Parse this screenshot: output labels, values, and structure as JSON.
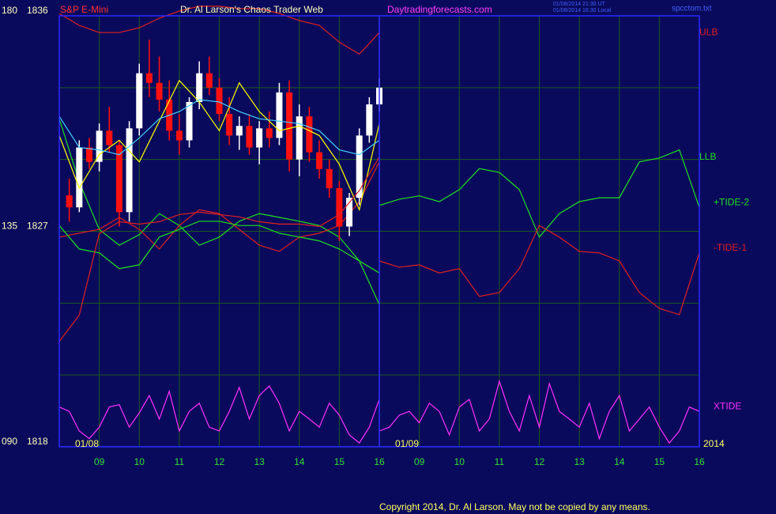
{
  "chart_data": {
    "type": "candlestick",
    "instrument": "S&P E-Mini",
    "title": "Dr. Al Larson's Chaos Trader Web",
    "website": "Daytradingforecasts.com",
    "timestamps": [
      "01/08/2014 21:30 UT",
      "01/08/2014 16:30 Local"
    ],
    "file": "spcctom.txt",
    "year": "2014",
    "copyright": "Copyright 2014, Dr. Al Larson. May not be copied by any means.",
    "ylim": [
      90,
      180
    ],
    "yticks": [
      {
        "value": 90,
        "label": "090"
      },
      135,
      180
    ],
    "y2lim": [
      1818,
      1836
    ],
    "y2ticks": [
      1818,
      1827,
      1836
    ],
    "grid_yticks": [
      90,
      105,
      120,
      135,
      150,
      165,
      180
    ],
    "grid": true,
    "sessions": [
      {
        "date": "01/08",
        "xlim": [
          8,
          16
        ],
        "xticks": [
          {
            "value": 9,
            "label": "09"
          },
          10,
          11,
          12,
          13,
          14,
          15,
          16
        ]
      },
      {
        "date": "01/09",
        "xlim": [
          8,
          16
        ],
        "xticks": [
          {
            "value": 9,
            "label": "09"
          },
          10,
          11,
          12,
          13,
          14,
          15,
          16
        ]
      }
    ],
    "candles": {
      "session": 0,
      "axis": "y2",
      "up_color": "#ffffff",
      "down_color": "#ff1010",
      "x": [
        8.25,
        8.5,
        8.75,
        9,
        9.25,
        9.5,
        9.75,
        10,
        10.25,
        10.5,
        10.75,
        11,
        11.25,
        11.5,
        11.75,
        12,
        12.25,
        12.5,
        12.75,
        13,
        13.25,
        13.5,
        13.75,
        14,
        14.25,
        14.5,
        14.75,
        15,
        15.25,
        15.5,
        15.75,
        16
      ],
      "open": [
        1828.5,
        1828.0,
        1830.5,
        1829.9,
        1831.2,
        1830.6,
        1827.8,
        1831.3,
        1833.6,
        1833.2,
        1832.5,
        1831.2,
        1830.8,
        1832.4,
        1833.6,
        1833.0,
        1831.9,
        1831.0,
        1831.4,
        1830.5,
        1831.3,
        1830.9,
        1832.8,
        1830.0,
        1831.8,
        1830.3,
        1829.6,
        1828.8,
        1827.2,
        1828.4,
        1831.0,
        1832.3
      ],
      "high": [
        1829.2,
        1830.8,
        1830.9,
        1831.5,
        1832.2,
        1830.8,
        1831.6,
        1834.0,
        1835.0,
        1834.3,
        1833.3,
        1831.9,
        1832.6,
        1834.1,
        1834.3,
        1833.4,
        1832.6,
        1831.8,
        1831.9,
        1831.6,
        1832.0,
        1833.2,
        1833.3,
        1832.3,
        1832.2,
        1830.8,
        1830.0,
        1829.1,
        1828.6,
        1831.3,
        1832.6,
        1833.4
      ],
      "low": [
        1827.4,
        1827.8,
        1829.6,
        1829.5,
        1830.3,
        1827.2,
        1827.4,
        1831.0,
        1832.6,
        1832.0,
        1830.8,
        1830.2,
        1830.5,
        1832.1,
        1832.7,
        1831.6,
        1830.6,
        1830.4,
        1830.2,
        1829.8,
        1830.5,
        1830.6,
        1829.5,
        1829.3,
        1829.9,
        1829.2,
        1828.4,
        1826.6,
        1826.8,
        1828.1,
        1830.7,
        1832.0
      ],
      "close": [
        1828.0,
        1830.5,
        1829.9,
        1831.2,
        1830.6,
        1827.8,
        1831.3,
        1833.6,
        1833.2,
        1832.5,
        1831.2,
        1830.8,
        1832.4,
        1833.6,
        1833.0,
        1831.9,
        1831.0,
        1831.4,
        1830.5,
        1831.3,
        1830.9,
        1832.8,
        1830.0,
        1831.8,
        1830.3,
        1829.6,
        1828.8,
        1827.2,
        1828.4,
        1831.0,
        1832.3,
        1833.0
      ]
    },
    "series": [
      {
        "color": "#ffff00",
        "axis": "y2",
        "segments": [
          {
            "session": 0,
            "x": [
              8,
              8.5,
              9,
              9.5,
              10,
              10.5,
              11,
              11.5,
              12,
              12.5,
              13,
              13.5,
              14,
              14.5,
              15,
              15.5,
              16
            ],
            "values": [
              1831.0,
              1828.8,
              1830.2,
              1830.8,
              1829.9,
              1831.6,
              1833.3,
              1832.4,
              1831.2,
              1833.2,
              1832.0,
              1831.2,
              1831.4,
              1831.0,
              1829.8,
              1827.9,
              1831.5
            ]
          }
        ]
      },
      {
        "color": "#40d0ff",
        "axis": "y2",
        "segments": [
          {
            "session": 0,
            "x": [
              8,
              8.5,
              9,
              9.5,
              10,
              10.5,
              11,
              11.5,
              12,
              12.5,
              13,
              13.5,
              14,
              14.5,
              15,
              15.5,
              16
            ],
            "values": [
              1831.8,
              1830.5,
              1830.4,
              1830.2,
              1830.9,
              1831.7,
              1832.0,
              1832.5,
              1832.4,
              1832.0,
              1831.7,
              1831.6,
              1831.5,
              1831.2,
              1830.4,
              1830.2,
              1830.8
            ]
          }
        ]
      },
      {
        "name": "ULB",
        "color": "#e02020",
        "axis": "y2",
        "segments": [
          {
            "session": 0,
            "x": [
              8,
              8.5,
              9,
              9.5,
              10,
              10.5,
              11,
              11.5,
              12,
              12.5,
              13,
              13.5,
              14,
              14.5,
              15,
              15.5,
              16
            ],
            "values": [
              1836.1,
              1835.6,
              1835.3,
              1835.3,
              1835.5,
              1835.9,
              1836.2,
              1836.4,
              1836.4,
              1836.3,
              1836.3,
              1836.1,
              1835.8,
              1835.6,
              1834.9,
              1834.4,
              1835.3
            ]
          }
        ]
      },
      {
        "name": "+TIDE-2",
        "color": "#20e020",
        "axis": "y",
        "segments": [
          {
            "session": 0,
            "x": [
              8,
              8.5,
              9,
              9.5,
              10,
              10.5,
              11,
              11.5,
              12,
              12.5,
              13,
              13.5,
              14,
              14.5,
              15,
              15.5,
              16
            ],
            "values": [
              158.5,
              145.3,
              135.4,
              132.1,
              134.3,
              138.7,
              136.2,
              132.1,
              133.8,
              137.1,
              138.7,
              137.9,
              137.1,
              136.2,
              133.8,
              128.8,
              119.7
            ]
          },
          {
            "session": 1,
            "x": [
              8,
              8.5,
              9,
              9.5,
              10,
              10.5,
              11,
              11.5,
              12,
              12.5,
              13,
              13.5,
              14,
              14.5,
              15,
              15.5,
              16
            ],
            "values": [
              140.4,
              141.7,
              142.4,
              141.2,
              143.7,
              148.1,
              147.3,
              143.7,
              133.8,
              138.7,
              141.2,
              142.0,
              142.0,
              149.5,
              150.3,
              152.0,
              140.0
            ]
          }
        ]
      },
      {
        "name": "LLB",
        "color": "#e02020",
        "label_color": "#20e020",
        "axis": "y2",
        "segments": [
          {
            "session": 0,
            "x": [
              8,
              8.5,
              9,
              9.5,
              10,
              10.5,
              11,
              11.5,
              12,
              12.5,
              13,
              13.5,
              14,
              14.5,
              15,
              15.5,
              16
            ],
            "values": [
              1822.4,
              1823.5,
              1826.9,
              1827.4,
              1827.3,
              1827.4,
              1827.7,
              1827.8,
              1827.7,
              1827.6,
              1827.4,
              1827.3,
              1827.3,
              1827.2,
              1827.7,
              1828.7,
              1830.1
            ]
          }
        ]
      },
      {
        "name": "-TIDE-1",
        "color": "#e02020",
        "axis": "y",
        "segments": [
          {
            "session": 0,
            "x": [
              8,
              8.5,
              9,
              9.5,
              10,
              10.5,
              11,
              11.5,
              12,
              12.5,
              13,
              13.5,
              14,
              14.5,
              15,
              15.5,
              16
            ],
            "values": [
              133.8,
              134.6,
              135.4,
              137.9,
              135.4,
              131.3,
              136.2,
              139.5,
              138.7,
              135.4,
              132.1,
              130.8,
              133.8,
              134.6,
              136.2,
              141.2,
              149.5
            ]
          },
          {
            "session": 1,
            "x": [
              8,
              8.5,
              9,
              9.5,
              10,
              10.5,
              11,
              11.5,
              12,
              12.5,
              13,
              13.5,
              14,
              14.5,
              15,
              15.5,
              16
            ],
            "values": [
              128.8,
              127.5,
              128.0,
              126.3,
              127.2,
              121.4,
              122.2,
              127.2,
              136.2,
              133.8,
              130.8,
              130.5,
              128.8,
              122.2,
              118.9,
              117.6,
              130.5
            ]
          }
        ]
      },
      {
        "color": "#20e020",
        "axis": "y",
        "segments": [
          {
            "session": 0,
            "x": [
              8,
              8.5,
              9,
              9.5,
              10,
              10.5,
              11,
              11.5,
              12,
              12.5,
              13,
              13.5,
              14,
              14.5,
              15,
              15.5,
              16
            ],
            "values": [
              136.2,
              131.3,
              130.5,
              127.2,
              128.0,
              133.8,
              135.4,
              137.1,
              137.1,
              136.2,
              136.2,
              134.6,
              133.8,
              133.0,
              131.3,
              128.8,
              126.3
            ]
          }
        ]
      },
      {
        "name": "XTIDE",
        "color": "#ff30ff",
        "axis": "y",
        "segments": [
          {
            "session": 0,
            "x": [
              8,
              8.25,
              8.5,
              8.75,
              9,
              9.25,
              9.5,
              9.75,
              10,
              10.25,
              10.5,
              10.75,
              11,
              11.25,
              11.5,
              11.75,
              12,
              12.25,
              12.5,
              12.75,
              13,
              13.25,
              13.5,
              13.75,
              14,
              14.25,
              14.5,
              14.75,
              15,
              15.25,
              15.5,
              15.75,
              16
            ],
            "values": [
              98.3,
              97.4,
              93.3,
              91.7,
              94.1,
              98.3,
              98.8,
              94.1,
              97.1,
              100.7,
              95.8,
              101.6,
              93.3,
              97.4,
              99.1,
              94.1,
              93.3,
              97.4,
              102.4,
              95.8,
              100.7,
              102.7,
              99.1,
              93.3,
              97.4,
              95.8,
              94.1,
              99.1,
              96.6,
              92.5,
              90.8,
              94.1,
              99.9
            ]
          },
          {
            "session": 1,
            "x": [
              8,
              8.25,
              8.5,
              8.75,
              9,
              9.25,
              9.5,
              9.75,
              10,
              10.25,
              10.5,
              10.75,
              11,
              11.25,
              11.5,
              11.75,
              12,
              12.25,
              12.5,
              12.75,
              13,
              13.25,
              13.5,
              13.75,
              14,
              14.25,
              14.5,
              14.75,
              15,
              15.25,
              15.5,
              15.75,
              16
            ],
            "values": [
              93.3,
              94.1,
              96.6,
              97.4,
              95.0,
              99.1,
              97.4,
              92.5,
              98.3,
              99.9,
              93.3,
              95.8,
              103.7,
              97.4,
              93.3,
              100.7,
              94.1,
              103.2,
              97.4,
              95.8,
              94.1,
              99.1,
              91.7,
              97.4,
              100.7,
              93.3,
              95.8,
              98.3,
              94.1,
              90.8,
              93.3,
              98.3,
              97.4
            ]
          }
        ]
      }
    ]
  }
}
